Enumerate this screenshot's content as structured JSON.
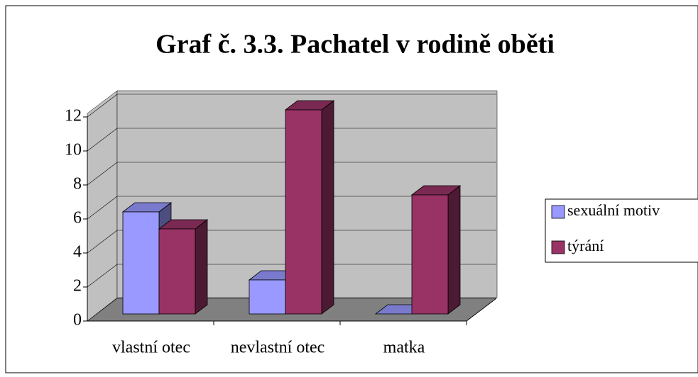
{
  "chart_data": {
    "type": "bar3d",
    "title": "Graf č. 3.3. Pachatel v rodině oběti",
    "categories": [
      "vlastní otec",
      "nevlastní otec",
      "matka"
    ],
    "series": [
      {
        "name": "sexuální motiv",
        "color": "#9999ff",
        "values": [
          6,
          2,
          0
        ]
      },
      {
        "name": "týrání",
        "color": "#993366",
        "values": [
          5,
          12,
          7
        ]
      }
    ],
    "ylim": [
      0,
      12
    ],
    "yticks": [
      0,
      2,
      4,
      6,
      8,
      10,
      12
    ],
    "grid": true,
    "legend": "right"
  }
}
